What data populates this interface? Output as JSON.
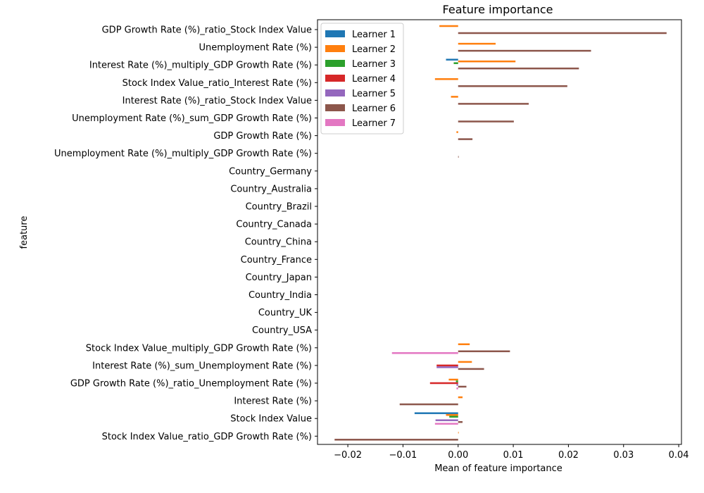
{
  "chart_data": {
    "type": "bar",
    "orientation": "horizontal",
    "title": "Feature importance",
    "xlabel": "Mean of feature importance",
    "ylabel": "feature",
    "xlim": [
      -0.0255,
      0.0405
    ],
    "xticks": [
      -0.02,
      -0.01,
      0.0,
      0.01,
      0.02,
      0.03,
      0.04
    ],
    "xtick_labels": [
      "−0.02",
      "−0.01",
      "0.00",
      "0.01",
      "0.02",
      "0.03",
      "0.04"
    ],
    "grid": false,
    "legend_position": "top-left",
    "categories": [
      "GDP Growth Rate (%)_ratio_Stock Index Value",
      "Unemployment Rate (%)",
      "Interest Rate (%)_multiply_GDP Growth Rate (%)",
      "Stock Index Value_ratio_Interest Rate (%)",
      "Interest Rate (%)_ratio_Stock Index Value",
      "Unemployment Rate (%)_sum_GDP Growth Rate (%)",
      "GDP Growth Rate (%)",
      "Unemployment Rate (%)_multiply_GDP Growth Rate (%)",
      "Country_Germany",
      "Country_Australia",
      "Country_Brazil",
      "Country_Canada",
      "Country_China",
      "Country_France",
      "Country_Japan",
      "Country_India",
      "Country_UK",
      "Country_USA",
      "Stock Index Value_multiply_GDP Growth Rate (%)",
      "Interest Rate (%)_sum_Unemployment Rate (%)",
      "GDP Growth Rate (%)_ratio_Unemployment Rate (%)",
      "Interest Rate (%)",
      "Stock Index Value",
      "Stock Index Value_ratio_GDP Growth Rate (%)"
    ],
    "series": [
      {
        "name": "Learner 1",
        "color": "#1f77b4",
        "values": [
          0,
          0,
          -0.0022,
          0,
          0,
          0,
          0,
          0,
          0,
          0,
          0,
          0,
          0,
          0,
          0,
          0,
          0,
          0,
          0,
          0,
          0,
          0,
          -0.0079,
          0
        ]
      },
      {
        "name": "Learner 2",
        "color": "#ff7f0e",
        "values": [
          -0.0034,
          0.0068,
          0.0104,
          -0.0042,
          -0.0013,
          0,
          -0.0003,
          0,
          0,
          0,
          0,
          0,
          0,
          0,
          0,
          0,
          0,
          0,
          0.0021,
          0.0025,
          -0.0017,
          0.0008,
          -0.0022,
          0.0001
        ]
      },
      {
        "name": "Learner 3",
        "color": "#2ca02c",
        "values": [
          0,
          0,
          -0.0008,
          0,
          0,
          0,
          0,
          0,
          0,
          0,
          0,
          0,
          0,
          0,
          0,
          0,
          0,
          0,
          0,
          0,
          -0.0004,
          0,
          -0.0016,
          0
        ]
      },
      {
        "name": "Learner 4",
        "color": "#d62728",
        "values": [
          0,
          0,
          0,
          0,
          0,
          0,
          0,
          0,
          0,
          0,
          0,
          0,
          0,
          0,
          0,
          0,
          0,
          0,
          0,
          -0.0039,
          -0.0051,
          0,
          0,
          0
        ]
      },
      {
        "name": "Learner 5",
        "color": "#9467bd",
        "values": [
          0,
          0,
          0,
          0,
          0,
          0,
          0,
          0,
          0,
          0,
          0,
          0,
          0,
          0,
          0,
          0,
          0,
          0,
          0,
          -0.0039,
          -0.0003,
          0,
          -0.0041,
          0
        ]
      },
      {
        "name": "Learner 6",
        "color": "#8c564b",
        "values": [
          0.0378,
          0.0241,
          0.0219,
          0.0198,
          0.0128,
          0.0101,
          0.0026,
          0.0001,
          0,
          0,
          0,
          0,
          0,
          0,
          0,
          0,
          0,
          0,
          0.0094,
          0.0047,
          0.0015,
          -0.0106,
          0.0008,
          -0.0224
        ]
      },
      {
        "name": "Learner 7",
        "color": "#e377c2",
        "values": [
          0,
          0,
          0,
          0,
          0,
          0,
          0,
          0,
          0,
          0,
          0,
          0,
          0,
          0,
          0,
          0,
          0,
          0,
          -0.012,
          0,
          -0.0003,
          0,
          -0.0042,
          0
        ]
      }
    ]
  }
}
